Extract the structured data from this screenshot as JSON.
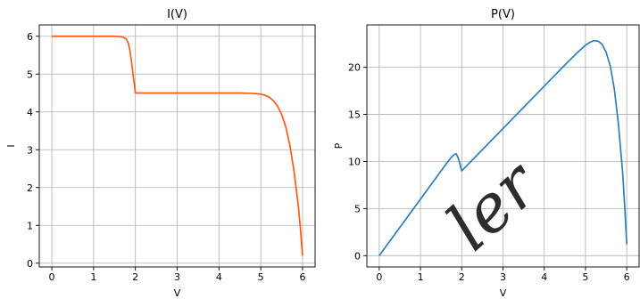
{
  "chart_data": [
    {
      "type": "line",
      "title": "I(V)",
      "xlabel": "V",
      "ylabel": "I",
      "xlim": [
        -0.3,
        6.3
      ],
      "ylim": [
        -0.1,
        6.3
      ],
      "xticks": [
        0,
        1,
        2,
        3,
        4,
        5,
        6
      ],
      "yticks": [
        0,
        1,
        2,
        3,
        4,
        5,
        6
      ],
      "grid": true,
      "color": "#ff5a14",
      "series": [
        {
          "x": [
            0,
            0.5,
            1.0,
            1.5,
            1.65,
            1.72,
            1.78,
            1.83,
            1.87,
            1.91,
            1.95,
            1.98,
            2.0,
            2.02,
            2.5,
            3.0,
            3.5,
            4.0,
            4.5,
            4.8,
            5.0,
            5.1,
            5.2,
            5.3,
            5.4,
            5.5,
            5.6,
            5.7,
            5.8,
            5.9,
            5.95,
            6.0
          ],
          "y": [
            6.0,
            6.0,
            6.0,
            6.0,
            5.99,
            5.97,
            5.93,
            5.82,
            5.62,
            5.3,
            4.93,
            4.7,
            4.5,
            4.5,
            4.5,
            4.5,
            4.5,
            4.5,
            4.5,
            4.49,
            4.47,
            4.44,
            4.39,
            4.3,
            4.16,
            3.93,
            3.6,
            3.1,
            2.4,
            1.5,
            0.9,
            0.2
          ]
        }
      ]
    },
    {
      "type": "line",
      "title": "P(V)",
      "xlabel": "V",
      "ylabel": "P",
      "xlim": [
        -0.3,
        6.3
      ],
      "ylim": [
        -1.2,
        24.5
      ],
      "xticks": [
        0,
        1,
        2,
        3,
        4,
        5,
        6
      ],
      "yticks": [
        0,
        5,
        10,
        15,
        20
      ],
      "grid": true,
      "color": "#2e7ebc",
      "series": [
        {
          "x": [
            0,
            0.5,
            1.0,
            1.5,
            1.65,
            1.75,
            1.82,
            1.87,
            1.91,
            1.95,
            1.98,
            2.0,
            2.02,
            2.5,
            3.0,
            3.5,
            4.0,
            4.5,
            4.8,
            5.0,
            5.1,
            5.2,
            5.3,
            5.4,
            5.5,
            5.6,
            5.7,
            5.8,
            5.9,
            5.95,
            6.0
          ],
          "y": [
            0,
            3.0,
            6.0,
            9.0,
            9.9,
            10.45,
            10.75,
            10.8,
            10.4,
            9.85,
            9.3,
            9.0,
            9.09,
            11.25,
            13.5,
            15.75,
            18.0,
            20.25,
            21.55,
            22.35,
            22.64,
            22.83,
            22.79,
            22.46,
            21.6,
            20.16,
            17.67,
            13.92,
            8.85,
            5.36,
            1.2
          ]
        }
      ]
    }
  ]
}
